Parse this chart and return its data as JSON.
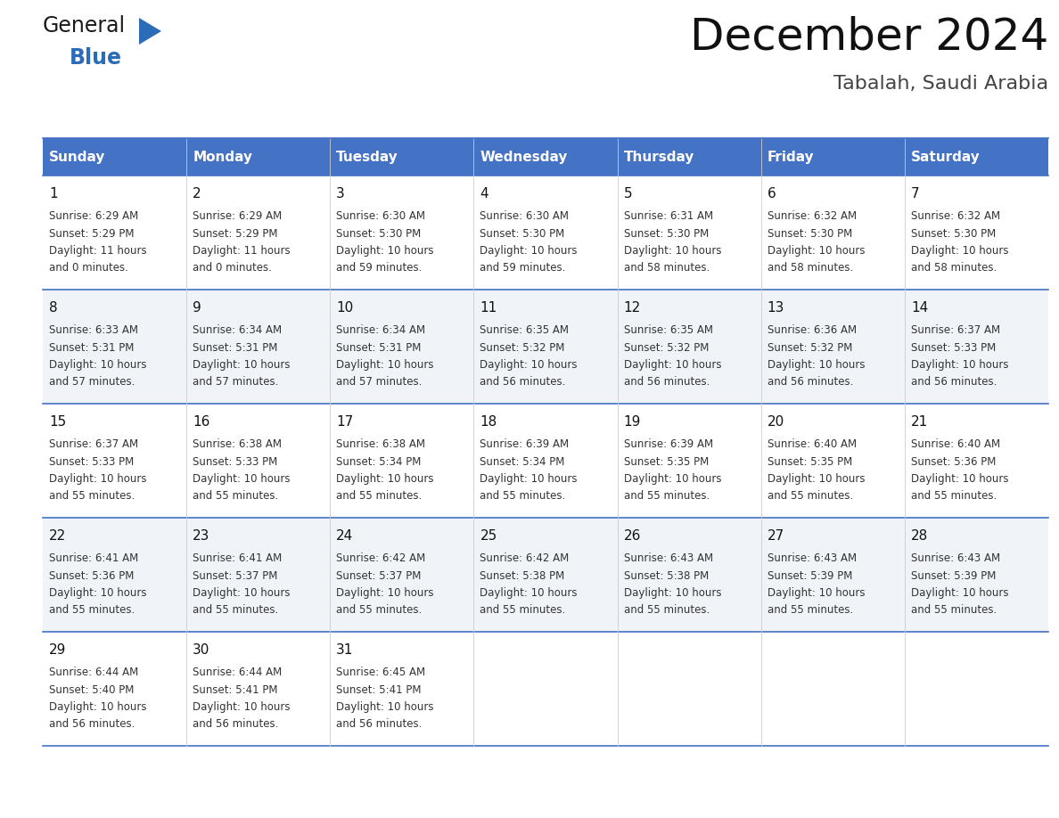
{
  "title": "December 2024",
  "subtitle": "Tabalah, Saudi Arabia",
  "header_bg": "#4472C4",
  "header_text_color": "#FFFFFF",
  "days_of_week": [
    "Sunday",
    "Monday",
    "Tuesday",
    "Wednesday",
    "Thursday",
    "Friday",
    "Saturday"
  ],
  "row_bg_odd": "#FFFFFF",
  "row_bg_even": "#F0F4F8",
  "cell_text_color": "#333333",
  "grid_line_color": "#4472C4",
  "calendar_data": [
    [
      {
        "day": 1,
        "sunrise": "6:29 AM",
        "sunset": "5:29 PM",
        "daylight_h": "11 hours",
        "daylight_m": "and 0 minutes."
      },
      {
        "day": 2,
        "sunrise": "6:29 AM",
        "sunset": "5:29 PM",
        "daylight_h": "11 hours",
        "daylight_m": "and 0 minutes."
      },
      {
        "day": 3,
        "sunrise": "6:30 AM",
        "sunset": "5:30 PM",
        "daylight_h": "10 hours",
        "daylight_m": "and 59 minutes."
      },
      {
        "day": 4,
        "sunrise": "6:30 AM",
        "sunset": "5:30 PM",
        "daylight_h": "10 hours",
        "daylight_m": "and 59 minutes."
      },
      {
        "day": 5,
        "sunrise": "6:31 AM",
        "sunset": "5:30 PM",
        "daylight_h": "10 hours",
        "daylight_m": "and 58 minutes."
      },
      {
        "day": 6,
        "sunrise": "6:32 AM",
        "sunset": "5:30 PM",
        "daylight_h": "10 hours",
        "daylight_m": "and 58 minutes."
      },
      {
        "day": 7,
        "sunrise": "6:32 AM",
        "sunset": "5:30 PM",
        "daylight_h": "10 hours",
        "daylight_m": "and 58 minutes."
      }
    ],
    [
      {
        "day": 8,
        "sunrise": "6:33 AM",
        "sunset": "5:31 PM",
        "daylight_h": "10 hours",
        "daylight_m": "and 57 minutes."
      },
      {
        "day": 9,
        "sunrise": "6:34 AM",
        "sunset": "5:31 PM",
        "daylight_h": "10 hours",
        "daylight_m": "and 57 minutes."
      },
      {
        "day": 10,
        "sunrise": "6:34 AM",
        "sunset": "5:31 PM",
        "daylight_h": "10 hours",
        "daylight_m": "and 57 minutes."
      },
      {
        "day": 11,
        "sunrise": "6:35 AM",
        "sunset": "5:32 PM",
        "daylight_h": "10 hours",
        "daylight_m": "and 56 minutes."
      },
      {
        "day": 12,
        "sunrise": "6:35 AM",
        "sunset": "5:32 PM",
        "daylight_h": "10 hours",
        "daylight_m": "and 56 minutes."
      },
      {
        "day": 13,
        "sunrise": "6:36 AM",
        "sunset": "5:32 PM",
        "daylight_h": "10 hours",
        "daylight_m": "and 56 minutes."
      },
      {
        "day": 14,
        "sunrise": "6:37 AM",
        "sunset": "5:33 PM",
        "daylight_h": "10 hours",
        "daylight_m": "and 56 minutes."
      }
    ],
    [
      {
        "day": 15,
        "sunrise": "6:37 AM",
        "sunset": "5:33 PM",
        "daylight_h": "10 hours",
        "daylight_m": "and 55 minutes."
      },
      {
        "day": 16,
        "sunrise": "6:38 AM",
        "sunset": "5:33 PM",
        "daylight_h": "10 hours",
        "daylight_m": "and 55 minutes."
      },
      {
        "day": 17,
        "sunrise": "6:38 AM",
        "sunset": "5:34 PM",
        "daylight_h": "10 hours",
        "daylight_m": "and 55 minutes."
      },
      {
        "day": 18,
        "sunrise": "6:39 AM",
        "sunset": "5:34 PM",
        "daylight_h": "10 hours",
        "daylight_m": "and 55 minutes."
      },
      {
        "day": 19,
        "sunrise": "6:39 AM",
        "sunset": "5:35 PM",
        "daylight_h": "10 hours",
        "daylight_m": "and 55 minutes."
      },
      {
        "day": 20,
        "sunrise": "6:40 AM",
        "sunset": "5:35 PM",
        "daylight_h": "10 hours",
        "daylight_m": "and 55 minutes."
      },
      {
        "day": 21,
        "sunrise": "6:40 AM",
        "sunset": "5:36 PM",
        "daylight_h": "10 hours",
        "daylight_m": "and 55 minutes."
      }
    ],
    [
      {
        "day": 22,
        "sunrise": "6:41 AM",
        "sunset": "5:36 PM",
        "daylight_h": "10 hours",
        "daylight_m": "and 55 minutes."
      },
      {
        "day": 23,
        "sunrise": "6:41 AM",
        "sunset": "5:37 PM",
        "daylight_h": "10 hours",
        "daylight_m": "and 55 minutes."
      },
      {
        "day": 24,
        "sunrise": "6:42 AM",
        "sunset": "5:37 PM",
        "daylight_h": "10 hours",
        "daylight_m": "and 55 minutes."
      },
      {
        "day": 25,
        "sunrise": "6:42 AM",
        "sunset": "5:38 PM",
        "daylight_h": "10 hours",
        "daylight_m": "and 55 minutes."
      },
      {
        "day": 26,
        "sunrise": "6:43 AM",
        "sunset": "5:38 PM",
        "daylight_h": "10 hours",
        "daylight_m": "and 55 minutes."
      },
      {
        "day": 27,
        "sunrise": "6:43 AM",
        "sunset": "5:39 PM",
        "daylight_h": "10 hours",
        "daylight_m": "and 55 minutes."
      },
      {
        "day": 28,
        "sunrise": "6:43 AM",
        "sunset": "5:39 PM",
        "daylight_h": "10 hours",
        "daylight_m": "and 55 minutes."
      }
    ],
    [
      {
        "day": 29,
        "sunrise": "6:44 AM",
        "sunset": "5:40 PM",
        "daylight_h": "10 hours",
        "daylight_m": "and 56 minutes."
      },
      {
        "day": 30,
        "sunrise": "6:44 AM",
        "sunset": "5:41 PM",
        "daylight_h": "10 hours",
        "daylight_m": "and 56 minutes."
      },
      {
        "day": 31,
        "sunrise": "6:45 AM",
        "sunset": "5:41 PM",
        "daylight_h": "10 hours",
        "daylight_m": "and 56 minutes."
      },
      null,
      null,
      null,
      null
    ]
  ],
  "logo_general_color": "#1a1a1a",
  "logo_blue_color": "#2B6CB8",
  "logo_triangle_color": "#2B6CB8",
  "title_fontsize": 36,
  "subtitle_fontsize": 16,
  "header_fontsize": 11,
  "day_num_fontsize": 11,
  "cell_fontsize": 8.5
}
